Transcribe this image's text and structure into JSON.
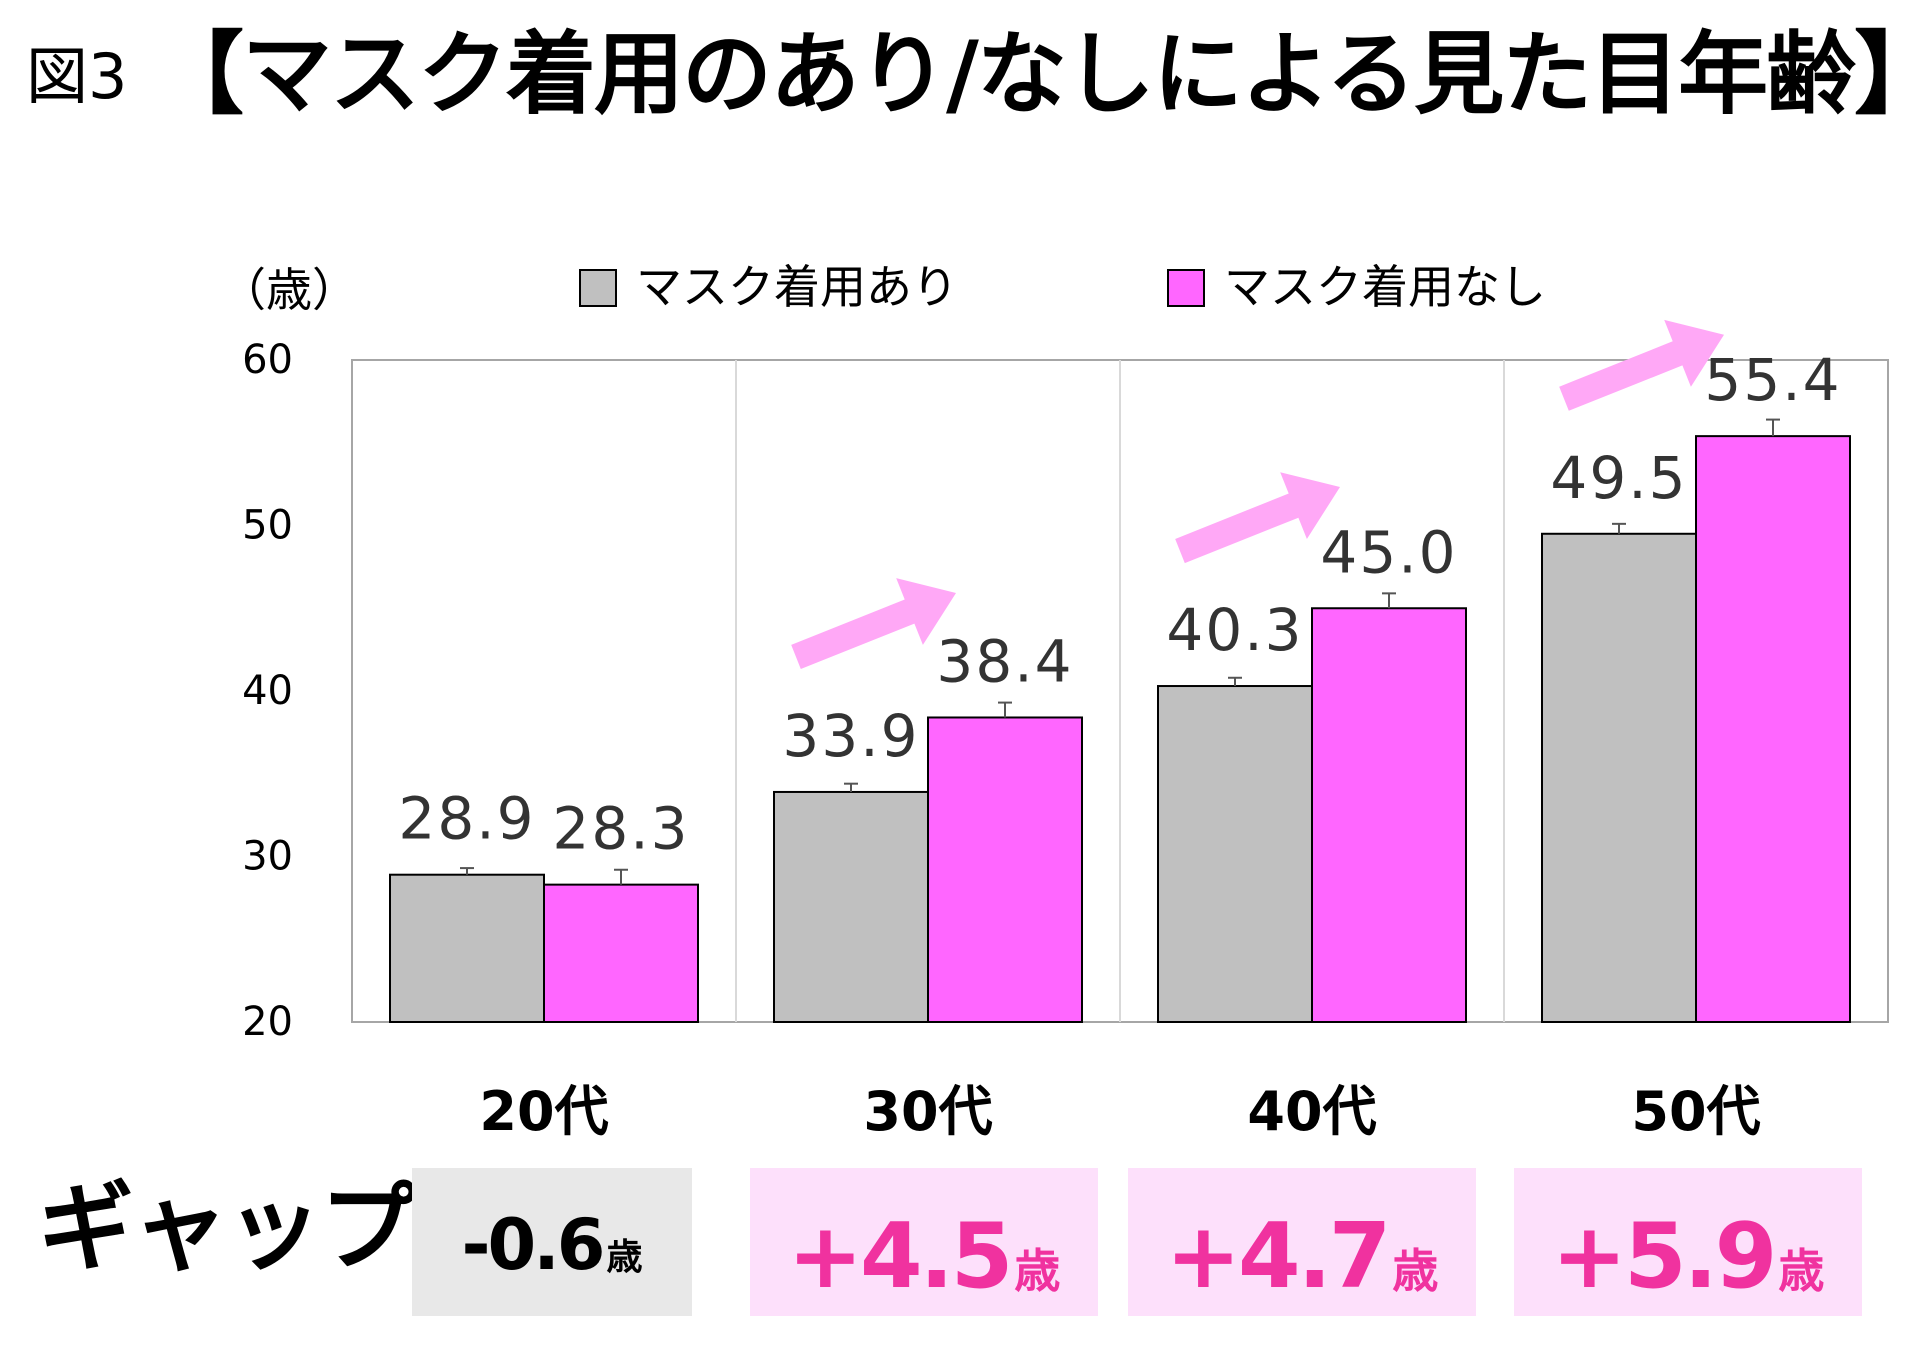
{
  "figure_label": "図3",
  "title": "【マスク着用のあり/なしによる見た目年齢】",
  "gap_label": "ギャップ",
  "colors": {
    "with_mask": "#c0c0c0",
    "without_mask": "#ff66ff",
    "arrow": "#ffa8f6",
    "gap_neutral_bg": "#e8e8e8",
    "gap_positive_bg": "#fde0fb",
    "gap_positive_text": "#f0329f",
    "gap_neutral_text": "#000000"
  },
  "chart_data": {
    "type": "bar",
    "title": "【マスク着用のあり/なしによる見た目年齢】",
    "ylabel": "（歳）",
    "xlabel": "",
    "ylim": [
      20,
      60
    ],
    "yticks": [
      20,
      30,
      40,
      50,
      60
    ],
    "grid": "vertical-separators",
    "legend": "top",
    "categories": [
      "20代",
      "30代",
      "40代",
      "50代"
    ],
    "series": [
      {
        "name": "マスク着用あり",
        "values": [
          28.9,
          33.9,
          40.3,
          49.5
        ],
        "labels": [
          "28.9",
          "33.9",
          "40.3",
          "49.5"
        ],
        "error": [
          0.4,
          0.5,
          0.5,
          0.6
        ]
      },
      {
        "name": "マスク着用なし",
        "values": [
          28.3,
          38.4,
          45.0,
          55.4
        ],
        "labels": [
          "28.3",
          "38.4",
          "45.0",
          "55.4"
        ],
        "error": [
          0.9,
          0.9,
          0.9,
          1.0
        ]
      }
    ],
    "arrow_categories": [
      "30代",
      "40代",
      "50代"
    ]
  },
  "gaps": [
    {
      "value": "-0.6",
      "unit": "歳",
      "positive": false
    },
    {
      "value": "+4.5",
      "unit": "歳",
      "positive": true
    },
    {
      "value": "+4.7",
      "unit": "歳",
      "positive": true
    },
    {
      "value": "+5.9",
      "unit": "歳",
      "positive": true
    }
  ]
}
